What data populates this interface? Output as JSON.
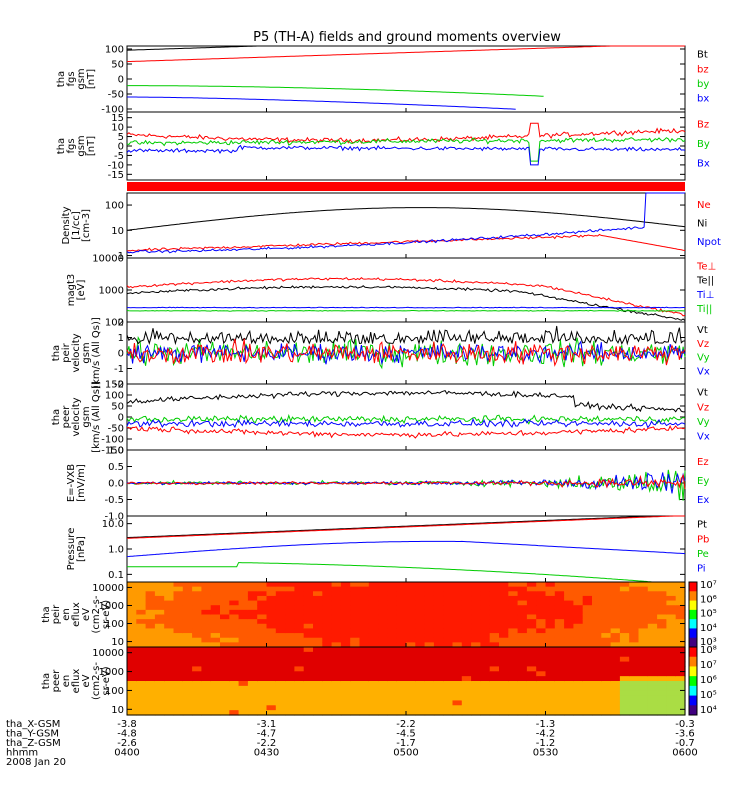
{
  "chart_data": {
    "type": "line",
    "title": "P5 (TH-A) fields and ground moments overview",
    "colors": {
      "black": "#000000",
      "red": "#ff0000",
      "green": "#00cc00",
      "blue": "#0000ff",
      "bar": "#ff0000"
    },
    "x_time_ticks": [
      "0400",
      "0430",
      "0500",
      "0530",
      "0600"
    ],
    "panels": [
      {
        "id": "fgs_total",
        "ylabel": [
          "tha",
          "fgs",
          "gsm",
          "[nT]"
        ],
        "yscale": "linear",
        "ylim": [
          -110,
          110
        ],
        "yticks": [
          "100",
          "50",
          "0",
          "-50",
          "-100"
        ],
        "ytick_values": [
          100,
          50,
          0,
          -50,
          -100
        ],
        "legend": [
          {
            "label": "Bt",
            "color": "black"
          },
          {
            "label": "bz",
            "color": "red"
          },
          {
            "label": "by",
            "color": "green"
          },
          {
            "label": "bx",
            "color": "blue"
          }
        ]
      },
      {
        "id": "fgs_comp",
        "ylabel": [
          "tha",
          "fgs",
          "gsm",
          "[nT]"
        ],
        "yscale": "linear",
        "ylim": [
          -18,
          18
        ],
        "yticks": [
          "15",
          "10",
          "5",
          "0",
          "-5",
          "-10",
          "-15"
        ],
        "ytick_values": [
          15,
          10,
          5,
          0,
          -5,
          -10,
          -15
        ],
        "legend": [
          {
            "label": "Bz",
            "color": "red"
          },
          {
            "label": "By",
            "color": "green"
          },
          {
            "label": "Bx",
            "color": "blue"
          }
        ]
      },
      {
        "id": "density",
        "ylabel": [
          "Density",
          "[1/cc]",
          "[cm-3]"
        ],
        "yscale": "log",
        "ylim": [
          0.8,
          300
        ],
        "yticks": [
          "100",
          "10",
          "1"
        ],
        "ytick_values": [
          100,
          10,
          1
        ],
        "legend": [
          {
            "label": "Ne",
            "color": "red"
          },
          {
            "label": "Ni",
            "color": "black"
          },
          {
            "label": "Npot",
            "color": "blue"
          }
        ]
      },
      {
        "id": "temperature",
        "ylabel": [
          "magt3",
          "[eV]"
        ],
        "yscale": "log",
        "ylim": [
          100,
          10000
        ],
        "yticks": [
          "10000",
          "1000",
          "100"
        ],
        "ytick_values": [
          10000,
          1000,
          100
        ],
        "legend": [
          {
            "label": "Te⊥",
            "color": "red"
          },
          {
            "label": "Te||",
            "color": "black"
          },
          {
            "label": "Ti⊥",
            "color": "blue"
          },
          {
            "label": "Ti||",
            "color": "green"
          }
        ]
      },
      {
        "id": "vel_ion",
        "ylabel": [
          "tha",
          "peir",
          "velocity",
          "gsm",
          "[km/s (All Qs)]"
        ],
        "yscale": "linear",
        "ylim": [
          -2,
          2
        ],
        "yticks": [
          "2",
          "1",
          "0",
          "-1",
          "-2"
        ],
        "ytick_values": [
          2,
          1,
          0,
          -1,
          -2
        ],
        "legend": [
          {
            "label": "Vt",
            "color": "black"
          },
          {
            "label": "Vz",
            "color": "red"
          },
          {
            "label": "Vy",
            "color": "green"
          },
          {
            "label": "Vx",
            "color": "blue"
          }
        ]
      },
      {
        "id": "vel_elec",
        "ylabel": [
          "tha",
          "peer",
          "velocity",
          "gsm",
          "[km/s (All Qs)]"
        ],
        "yscale": "linear",
        "ylim": [
          -150,
          150
        ],
        "yticks": [
          "150",
          "100",
          "50",
          "0",
          "-50",
          "-100",
          "-150"
        ],
        "ytick_values": [
          150,
          100,
          50,
          0,
          -50,
          -100,
          -150
        ],
        "legend": [
          {
            "label": "Vt",
            "color": "black"
          },
          {
            "label": "Vz",
            "color": "red"
          },
          {
            "label": "Vy",
            "color": "green"
          },
          {
            "label": "Vx",
            "color": "blue"
          }
        ]
      },
      {
        "id": "efield",
        "ylabel": [
          "E=-VXB",
          "[mV/m]"
        ],
        "yscale": "linear",
        "ylim": [
          -1,
          1
        ],
        "yticks": [
          "1.0",
          "0.5",
          "0.0",
          "-0.5",
          "-1.0"
        ],
        "ytick_values": [
          1,
          0.5,
          0,
          -0.5,
          -1
        ],
        "legend": [
          {
            "label": "Ez",
            "color": "red"
          },
          {
            "label": "Ey",
            "color": "green"
          },
          {
            "label": "Ex",
            "color": "blue"
          }
        ]
      },
      {
        "id": "pressure",
        "ylabel": [
          "Pressure",
          "[nPa]"
        ],
        "yscale": "log",
        "ylim": [
          0.05,
          20
        ],
        "yticks": [
          "10.0",
          "1.0",
          "0.1"
        ],
        "ytick_values": [
          10,
          1,
          0.1
        ],
        "legend": [
          {
            "label": "Pt",
            "color": "black"
          },
          {
            "label": "Pb",
            "color": "red"
          },
          {
            "label": "Pe",
            "color": "green"
          },
          {
            "label": "Pi",
            "color": "blue"
          }
        ]
      },
      {
        "id": "ion_spec",
        "ylabel": [
          "tha",
          "peir",
          "en",
          "eflux",
          "eV",
          "(cm2-s-",
          "sr-eV)"
        ],
        "yscale": "log",
        "ylim": [
          5,
          20000
        ],
        "yticks": [
          "10000",
          "1000",
          "100",
          "10"
        ],
        "ytick_values": [
          10000,
          1000,
          100,
          10
        ],
        "colorbar": {
          "min_exp": 3,
          "max_exp": 7,
          "labels": [
            "10⁷",
            "10⁶",
            "10⁵",
            "10⁴",
            "10³"
          ]
        }
      },
      {
        "id": "elec_spec",
        "ylabel": [
          "tha",
          "peer",
          "en",
          "eflux",
          "eV",
          "(cm2-s-",
          "sr-eV)"
        ],
        "yscale": "log",
        "ylim": [
          5,
          20000
        ],
        "yticks": [
          "10000",
          "1000",
          "100",
          "10"
        ],
        "ytick_values": [
          10000,
          1000,
          100,
          10
        ],
        "colorbar": {
          "min_exp": 4,
          "max_exp": 8,
          "labels": [
            "10⁸",
            "10⁷",
            "10⁶",
            "10⁵",
            "10⁴"
          ]
        }
      }
    ],
    "orbit": {
      "rows": [
        {
          "label": "tha_X-GSM",
          "values": [
            "-3.8",
            "-3.1",
            "-2.2",
            "-1.3",
            "-0.3"
          ]
        },
        {
          "label": "tha_Y-GSM",
          "values": [
            "-4.8",
            "-4.7",
            "-4.5",
            "-4.2",
            "-3.6"
          ]
        },
        {
          "label": "tha_Z-GSM",
          "values": [
            "-2.6",
            "-2.2",
            "-1.7",
            "-1.2",
            "-0.7"
          ]
        },
        {
          "label": "hhmm",
          "values": [
            "0400",
            "0430",
            "0500",
            "0530",
            "0600"
          ]
        }
      ],
      "date": "2008 Jan 20"
    }
  }
}
